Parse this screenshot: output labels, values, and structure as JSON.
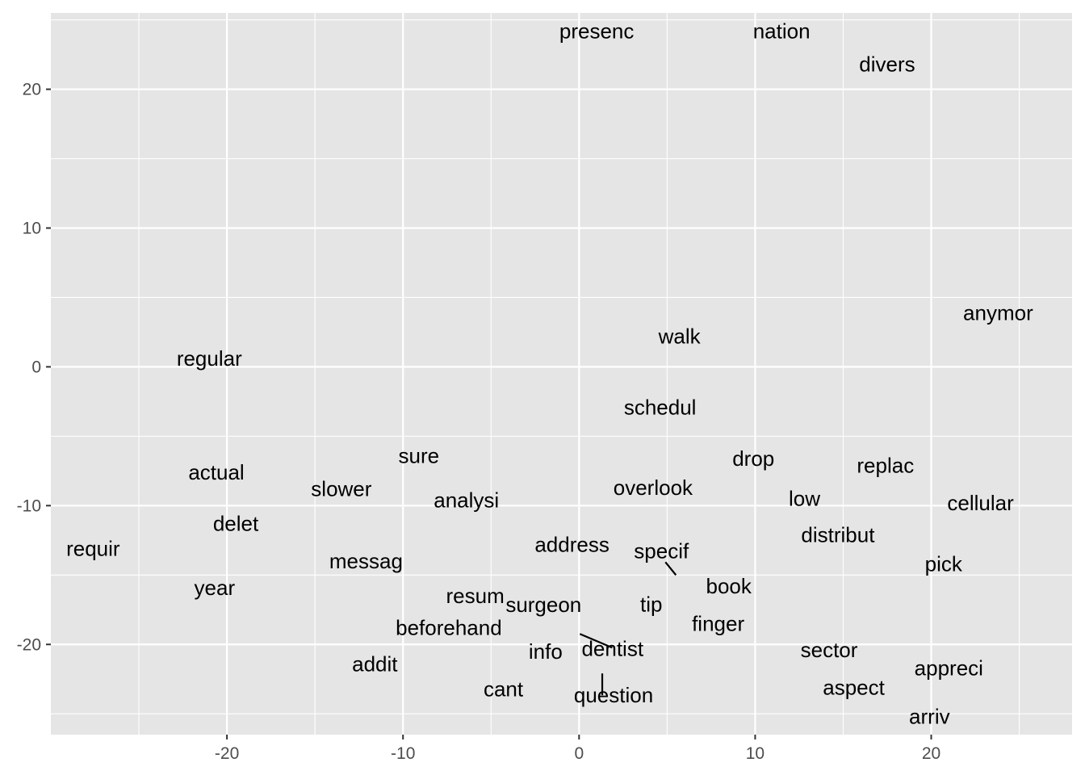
{
  "chart_data": {
    "type": "scatter",
    "title": "",
    "xlabel": "",
    "ylabel": "",
    "xlim": [
      -30,
      28
    ],
    "ylim": [
      -26.5,
      25.5
    ],
    "x_major_ticks": [
      -20,
      -10,
      0,
      10,
      20
    ],
    "y_major_ticks": [
      -20,
      -10,
      0,
      10,
      20
    ],
    "x_tick_labels": [
      "-20",
      "-10",
      "0",
      "10",
      "20"
    ],
    "y_tick_labels": [
      "-20",
      "-10",
      "0",
      "10",
      "20"
    ],
    "grid": true,
    "legend": "none",
    "points": [
      {
        "label": "presenc",
        "x": 1.0,
        "y": 24.2
      },
      {
        "label": "nation",
        "x": 11.5,
        "y": 24.2
      },
      {
        "label": "divers",
        "x": 17.5,
        "y": 21.8
      },
      {
        "label": "anymor",
        "x": 23.8,
        "y": 3.9
      },
      {
        "label": "walk",
        "x": 5.7,
        "y": 2.2
      },
      {
        "label": "regular",
        "x": -21.0,
        "y": 0.6
      },
      {
        "label": "schedul",
        "x": 4.6,
        "y": -2.9
      },
      {
        "label": "sure",
        "x": -9.1,
        "y": -6.4
      },
      {
        "label": "drop",
        "x": 9.9,
        "y": -6.6
      },
      {
        "label": "replac",
        "x": 17.4,
        "y": -7.1
      },
      {
        "label": "actual",
        "x": -20.6,
        "y": -7.6
      },
      {
        "label": "slower",
        "x": -13.5,
        "y": -8.8
      },
      {
        "label": "overlook",
        "x": 4.2,
        "y": -8.7
      },
      {
        "label": "analysi",
        "x": -6.4,
        "y": -9.6
      },
      {
        "label": "low",
        "x": 12.8,
        "y": -9.5
      },
      {
        "label": "cellular",
        "x": 22.8,
        "y": -9.8
      },
      {
        "label": "delet",
        "x": -19.5,
        "y": -11.3
      },
      {
        "label": "distribut",
        "x": 14.7,
        "y": -12.1
      },
      {
        "label": "requir",
        "x": -27.6,
        "y": -13.1
      },
      {
        "label": "address",
        "x": -0.4,
        "y": -12.8
      },
      {
        "label": "specif",
        "x": 5.5,
        "y": -15.0
      },
      {
        "label": "messag",
        "x": -12.1,
        "y": -14.0
      },
      {
        "label": "pick",
        "x": 20.7,
        "y": -14.2
      },
      {
        "label": "year",
        "x": -20.7,
        "y": -15.9
      },
      {
        "label": "book",
        "x": 8.5,
        "y": -15.8
      },
      {
        "label": "resum",
        "x": -5.9,
        "y": -16.5
      },
      {
        "label": "tip",
        "x": 4.1,
        "y": -17.1
      },
      {
        "label": "surgeon",
        "x": 0.0,
        "y": -19.3
      },
      {
        "label": "beforehand",
        "x": -7.4,
        "y": -18.8
      },
      {
        "label": "finger",
        "x": 7.9,
        "y": -18.5
      },
      {
        "label": "dentist",
        "x": 1.9,
        "y": -20.3
      },
      {
        "label": "info",
        "x": -1.9,
        "y": -20.5
      },
      {
        "label": "sector",
        "x": 14.2,
        "y": -20.4
      },
      {
        "label": "addit",
        "x": -11.6,
        "y": -21.4
      },
      {
        "label": "appreci",
        "x": 21.0,
        "y": -21.7
      },
      {
        "label": "question",
        "x": 1.5,
        "y": -21.8
      },
      {
        "label": "aspect",
        "x": 15.6,
        "y": -23.1
      },
      {
        "label": "cant",
        "x": -4.3,
        "y": -23.2
      },
      {
        "label": "arriv",
        "x": 19.9,
        "y": -25.2
      }
    ]
  }
}
